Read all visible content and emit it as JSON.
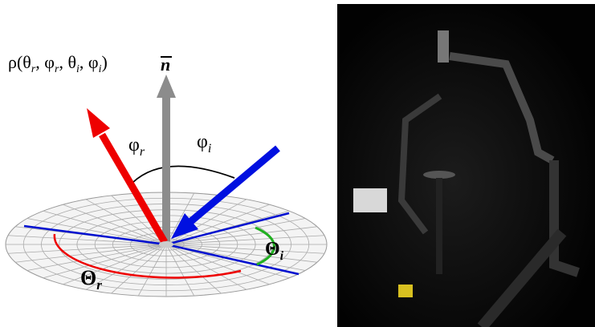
{
  "diagram": {
    "formula": [
      "ρ(θ",
      "r",
      ", φ",
      "r",
      ", θ",
      "i",
      ", φ",
      "i",
      ")"
    ],
    "normal_label": "n",
    "phi_r": {
      "symbol": "φ",
      "sub": "r"
    },
    "phi_i": {
      "symbol": "φ",
      "sub": "i"
    },
    "theta_i": {
      "symbol": "Θ",
      "sub": "i"
    },
    "theta_r": {
      "symbol": "Θ",
      "sub": "r"
    }
  }
}
